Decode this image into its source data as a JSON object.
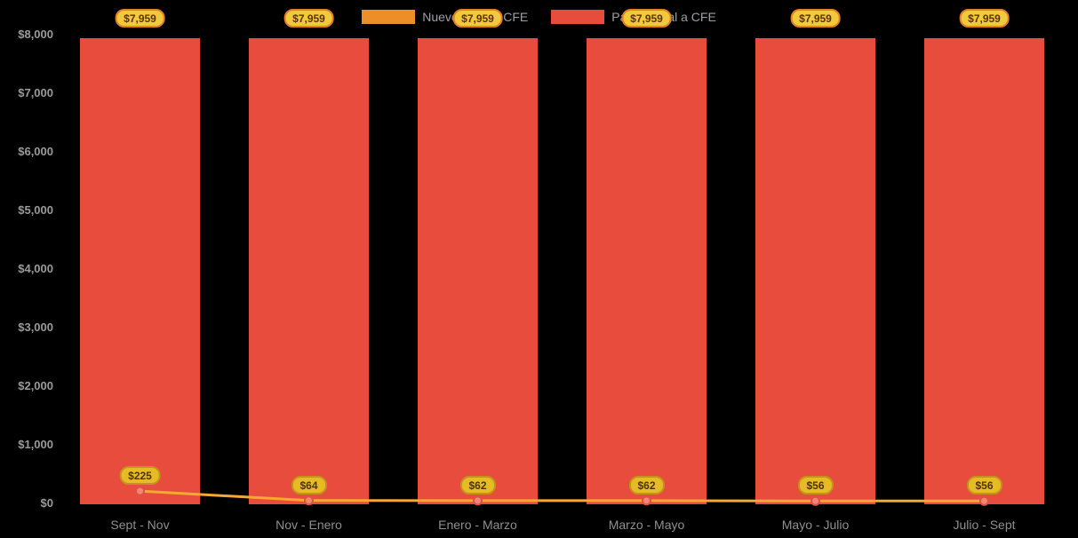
{
  "chart_data": {
    "type": "bar+line",
    "title": "",
    "categories": [
      "Sept - Nov",
      "Nov - Enero",
      "Enero - Marzo",
      "Marzo - Mayo",
      "Mayo - Julio",
      "Julio - Sept"
    ],
    "series": [
      {
        "name": "Nuevo pago a CFE",
        "type": "line",
        "color": "#F6A832",
        "swatch_color": "#EC8F28",
        "point_fill": "#F08873",
        "point_stroke": "#DE5145",
        "values": [
          225,
          64,
          62,
          62,
          56,
          56
        ],
        "labels": [
          "$225",
          "$64",
          "$62",
          "$62",
          "$56",
          "$56"
        ]
      },
      {
        "name": "Pago actual a CFE",
        "type": "bar",
        "color": "#E74C3C",
        "values": [
          7959,
          7959,
          7959,
          7959,
          7959,
          7959
        ],
        "labels": [
          "$7,959",
          "$7,959",
          "$7,959",
          "$7,959",
          "$7,959",
          "$7,959"
        ]
      }
    ],
    "ylim": [
      0,
      8000
    ],
    "ytick_step": 1000,
    "ytick_labels": [
      "$0",
      "$1,000",
      "$2,000",
      "$3,000",
      "$4,000",
      "$5,000",
      "$6,000",
      "$7,000",
      "$8,000"
    ],
    "grid": false,
    "legend_position": "top-center",
    "background": "#000000",
    "axis_text_color": "#9a9a9a",
    "xlabel_color": "#8f8f8f",
    "legend_text_color": "#9aa0a6",
    "badge_top": {
      "fill": "#F2C93B",
      "border": "#E0802A",
      "text": "#5a3408"
    },
    "badge_line": {
      "fill": "#E7BB25",
      "border": "#C3941A",
      "text": "#4a3505"
    }
  }
}
